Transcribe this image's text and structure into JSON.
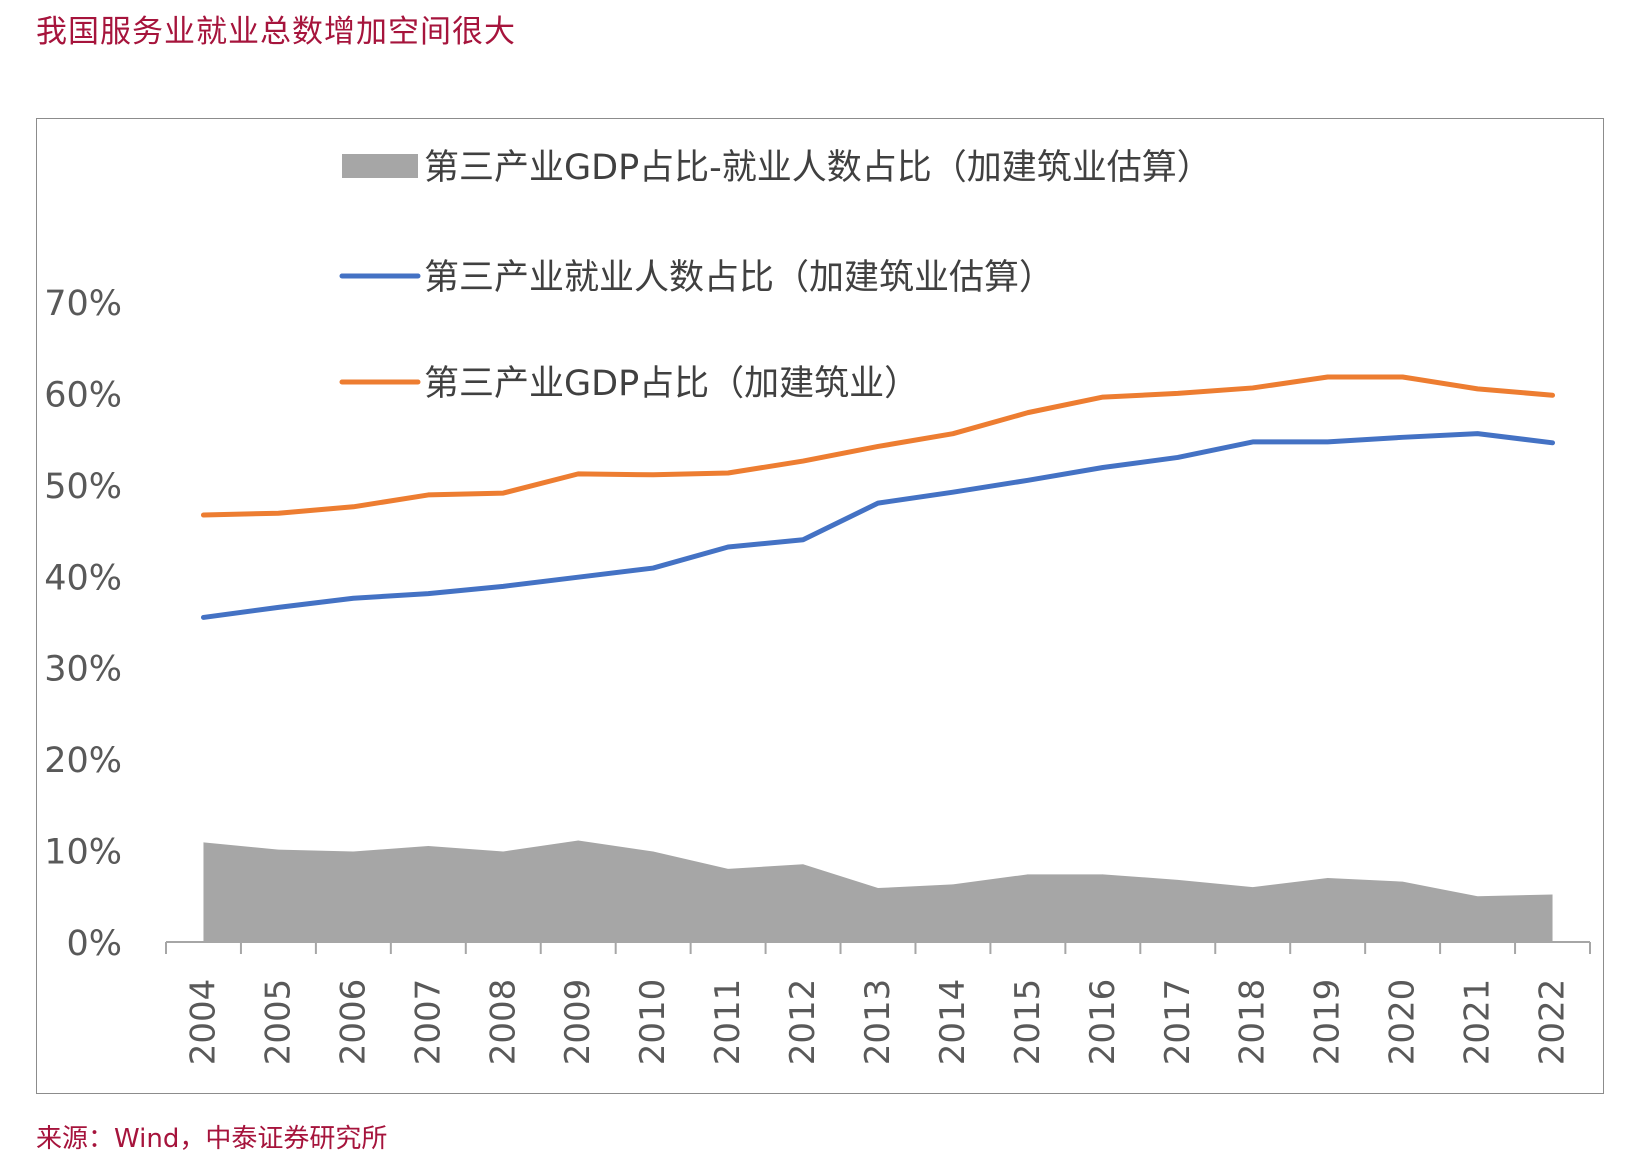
{
  "title": "我国服务业就业总数增加空间很大",
  "source": "来源：Wind，中泰证券研究所",
  "colors": {
    "gap": "#a6a6a6",
    "employment": "#4472c4",
    "gdp": "#ed7d31",
    "title": "#a6143c"
  },
  "chart_data": {
    "type": "line",
    "x": [
      "2004",
      "2005",
      "2006",
      "2007",
      "2008",
      "2009",
      "2010",
      "2011",
      "2012",
      "2013",
      "2014",
      "2015",
      "2016",
      "2017",
      "2018",
      "2019",
      "2020",
      "2021",
      "2022"
    ],
    "ylim": [
      0,
      70
    ],
    "yticks": [
      "0%",
      "10%",
      "20%",
      "30%",
      "40%",
      "50%",
      "60%",
      "70%"
    ],
    "yticks_values": [
      0,
      10,
      20,
      30,
      40,
      50,
      60,
      70
    ],
    "legend_position": "top",
    "series": [
      {
        "name": "第三产业GDP占比-就业人数占比（加建筑业估算）",
        "kind": "area",
        "color": "#a6a6a6",
        "values": [
          10.9,
          10.1,
          9.9,
          10.5,
          9.9,
          11.1,
          9.9,
          8.0,
          8.5,
          5.9,
          6.3,
          7.4,
          7.4,
          6.8,
          6.0,
          7.0,
          6.6,
          5.0,
          5.2
        ]
      },
      {
        "name": "第三产业就业人数占比（加建筑业估算）",
        "kind": "line",
        "color": "#4472c4",
        "values": [
          35.5,
          36.6,
          37.6,
          38.1,
          38.9,
          39.9,
          40.9,
          43.2,
          44.0,
          48.0,
          49.2,
          50.5,
          51.9,
          53.0,
          54.7,
          54.7,
          55.2,
          55.6,
          54.6
        ]
      },
      {
        "name": "第三产业GDP占比（加建筑业）",
        "kind": "line",
        "color": "#ed7d31",
        "values": [
          46.7,
          46.9,
          47.6,
          48.9,
          49.1,
          51.2,
          51.1,
          51.3,
          52.6,
          54.2,
          55.6,
          57.9,
          59.6,
          60.0,
          60.6,
          61.8,
          61.8,
          60.5,
          59.8
        ]
      }
    ]
  }
}
